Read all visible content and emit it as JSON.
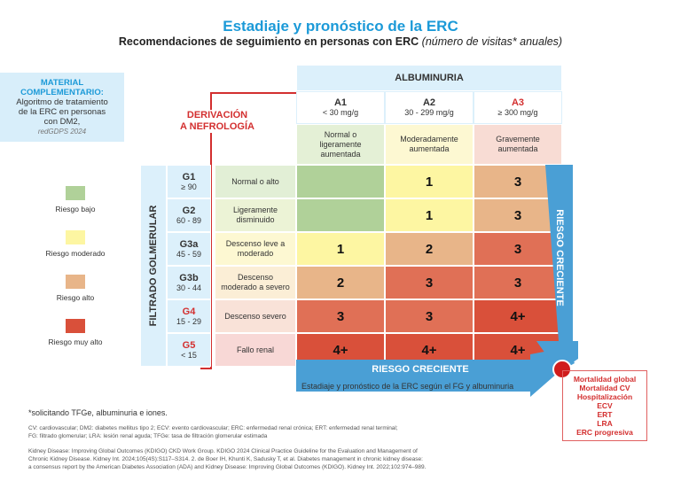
{
  "title": "Estadiaje y pronóstico de la ERC",
  "subtitle": "Recomendaciones de seguimiento en personas con ERC",
  "subtitle_note": "(número de visitas* anuales)",
  "material": {
    "title1": "MATERIAL",
    "title2": "COMPLEMENTARIO:",
    "line1": "Algoritmo de tratamiento",
    "line2": "de la  ERC en personas",
    "line3": "con DM2,",
    "source": "redGDPS 2024"
  },
  "derivacion": {
    "line1": "DERIVACIÓN",
    "line2": "A NEFROLOGÍA"
  },
  "albuminuria": {
    "title": "ALBUMINURIA",
    "columns": [
      {
        "code": "A1",
        "range": "< 30 mg/g",
        "desc": "Normal o ligeramente aumentada",
        "color": "#e4f0d6"
      },
      {
        "code": "A2",
        "range": "30 - 299 mg/g",
        "desc": "Moderadamente aumentada",
        "color": "#fdf8d2"
      },
      {
        "code": "A3",
        "range": "≥ 300 mg/g",
        "desc": "Gravemente aumentada",
        "color": "#f8dcd4"
      }
    ]
  },
  "fg_label": "FILTRADO GOLMERULAR",
  "rows": [
    {
      "code": "G1",
      "range": "≥ 90",
      "desc": "Normal o alto",
      "bg": "#e2efd6",
      "cells": [
        "",
        "1",
        "3"
      ],
      "colors": [
        "#b0d199",
        "#fdf6a2",
        "#e8b589"
      ]
    },
    {
      "code": "G2",
      "range": "60 - 89",
      "desc": "Ligeramente disminuido",
      "bg": "#ecf3d6",
      "cells": [
        "",
        "1",
        "3"
      ],
      "colors": [
        "#b0d199",
        "#fdf6a2",
        "#e8b589"
      ]
    },
    {
      "code": "G3a",
      "range": "45 - 59",
      "desc": "Descenso leve a moderado",
      "bg": "#fdf8d2",
      "cells": [
        "1",
        "2",
        "3"
      ],
      "colors": [
        "#fdf6a2",
        "#e8b589",
        "#e07056"
      ]
    },
    {
      "code": "G3b",
      "range": "30 - 44",
      "desc": "Descenso moderado a severo",
      "bg": "#fbeed6",
      "cells": [
        "2",
        "3",
        "3"
      ],
      "colors": [
        "#e8b589",
        "#e07056",
        "#e07056"
      ]
    },
    {
      "code": "G4",
      "range": "15 - 29",
      "desc": "Descenso severo",
      "bg": "#f9e2d8",
      "cells": [
        "3",
        "3",
        "4+"
      ],
      "colors": [
        "#e07056",
        "#e07056",
        "#d9503a"
      ]
    },
    {
      "code": "G5",
      "range": "< 15",
      "desc": "Fallo renal",
      "bg": "#f8d8d6",
      "cells": [
        "4+",
        "4+",
        "4+"
      ],
      "colors": [
        "#d9503a",
        "#d9503a",
        "#d9503a"
      ]
    }
  ],
  "legend": [
    {
      "label": "Riesgo bajo",
      "color": "#b0d199"
    },
    {
      "label": "Riesgo moderado",
      "color": "#fdf6a2"
    },
    {
      "label": "Riesgo alto",
      "color": "#e8b589"
    },
    {
      "label": "Riesgo muy alto",
      "color": "#d9503a"
    }
  ],
  "arrow_h": "RIESGO CRECIENTE",
  "arrow_v": "RIESGO CRECIENTE",
  "caption": "Estadiaje y pronóstico de la ERC según el FG y albuminuria",
  "outcomes": [
    "Mortalidad global",
    "Mortalidad CV",
    "Hospitalización",
    "ECV",
    "ERT",
    "LRA",
    "ERC progresiva"
  ],
  "footnote": "*solicitando TFGe, albuminuria e iones.",
  "abbrev1": "CV: cardiovascular; DM2: diabetes mellitus tipo 2; ECV: evento cardiovascular; ERC: enfermedad renal crónica; ERT: enfermedad renal terminal;",
  "abbrev2": "FG: filtrado glomerular; LRA: lesión renal aguda; TFGe: tasa de filtración glomerular estimada",
  "ref1": "Kidney Disease: Improving Global Outcomes (KDIGO) CKD Work Group. KDIGO 2024 Clinical Practice Guideline for the Evaluation and Management of",
  "ref2": "Chronic Kidney Disease. Kidney Int. 2024;105(4S):S117–S314. 2. de Boer IH, Khunti K, Sadusky T, et al. Diabetes management in chronic kidney disease:",
  "ref3": "a consensus report by the American Diabetes Association (ADA) and Kidney Disease: Improving Global Outcomes (KDIGO). Kidney Int. 2022;102:974–989.",
  "colors": {
    "blue": "#1c9ad8",
    "arrow": "#4a9fd5",
    "red": "#d32f2f"
  }
}
